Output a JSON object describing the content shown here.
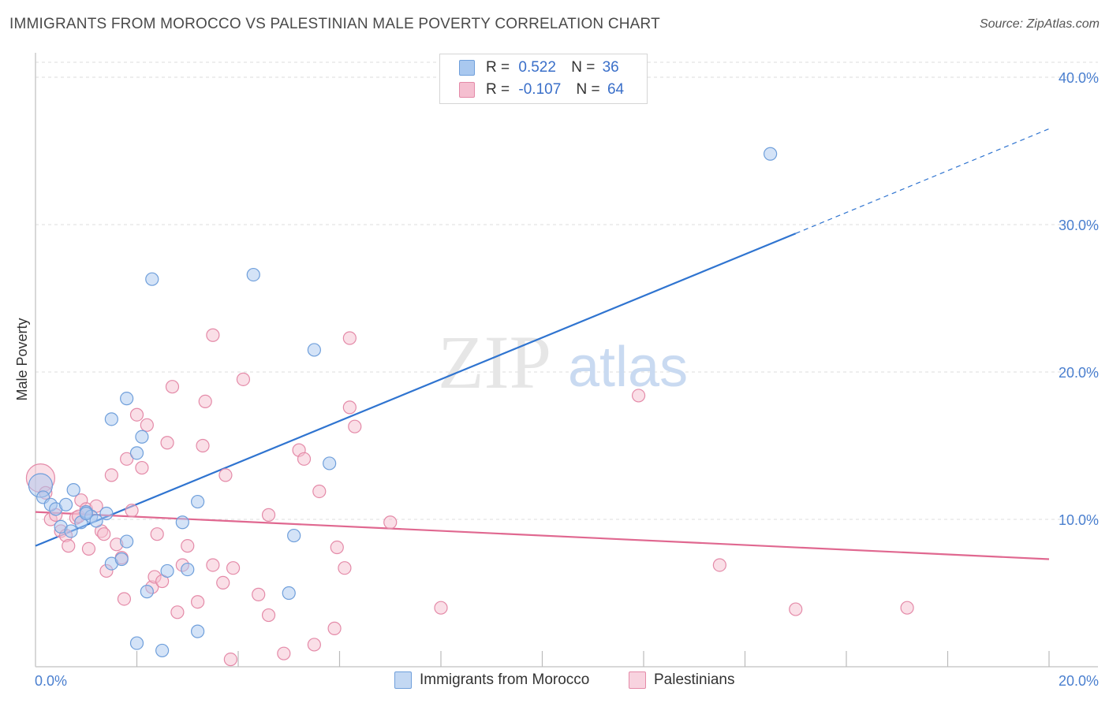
{
  "header": {
    "title": "IMMIGRANTS FROM MOROCCO VS PALESTINIAN MALE POVERTY CORRELATION CHART",
    "source": "Source: ZipAtlas.com"
  },
  "legend": {
    "rows": [
      {
        "r_label": "R =",
        "r_value": "0.522",
        "n_label": "N =",
        "n_value": "36"
      },
      {
        "r_label": "R =",
        "r_value": "-0.107",
        "n_label": "N =",
        "n_value": "64"
      }
    ]
  },
  "watermark": {
    "zip": "ZIP",
    "atlas": "atlas"
  },
  "colors": {
    "blue_fill": "#a9c8ef",
    "blue_stroke": "#6f9fdb",
    "blue_line": "#2f74d0",
    "pink_fill": "#f5bfd0",
    "pink_stroke": "#e48aa8",
    "pink_line": "#e06890",
    "axis_text": "#4a7fcf",
    "grid": "#dcdcdc"
  },
  "chart_data": {
    "type": "scatter",
    "title": "IMMIGRANTS FROM MOROCCO VS PALESTINIAN MALE POVERTY CORRELATION CHART",
    "xlabel": "",
    "ylabel": "Male Poverty",
    "xlim": [
      0,
      20
    ],
    "ylim": [
      0,
      40
    ],
    "x_tick_labels": [
      "0.0%",
      "20.0%"
    ],
    "y_tick_labels": [
      "10.0%",
      "20.0%",
      "30.0%",
      "40.0%"
    ],
    "y_ticks": [
      10,
      20,
      30,
      40
    ],
    "x_minor_ticks": [
      2,
      4,
      6,
      8,
      10,
      12,
      14,
      16,
      18,
      20
    ],
    "grid": "horizontal dashed",
    "legend_position": "top-center",
    "series": [
      {
        "name": "Immigrants from Morocco",
        "color": "blue",
        "r": 0.522,
        "n": 36,
        "trend": {
          "x0": 0,
          "y0": 8.2,
          "x1": 15.0,
          "y1": 29.4,
          "dash_to_x": 20,
          "dash_to_y": 36.5
        },
        "points": [
          [
            0.1,
            12.3,
            "L"
          ],
          [
            0.15,
            11.5
          ],
          [
            0.3,
            11.0
          ],
          [
            0.4,
            10.7
          ],
          [
            0.6,
            11.0
          ],
          [
            0.75,
            12.0
          ],
          [
            0.5,
            9.5
          ],
          [
            0.7,
            9.2
          ],
          [
            0.9,
            9.8
          ],
          [
            1.0,
            10.5
          ],
          [
            1.1,
            10.2
          ],
          [
            1.2,
            9.9
          ],
          [
            1.4,
            10.4
          ],
          [
            1.5,
            7.0
          ],
          [
            1.7,
            7.3
          ],
          [
            1.8,
            8.5
          ],
          [
            1.5,
            16.8
          ],
          [
            1.8,
            18.2
          ],
          [
            2.1,
            15.6
          ],
          [
            2.0,
            14.5
          ],
          [
            2.3,
            26.3
          ],
          [
            2.6,
            6.5
          ],
          [
            3.0,
            6.6
          ],
          [
            3.2,
            11.2
          ],
          [
            2.9,
            9.8
          ],
          [
            3.2,
            2.4
          ],
          [
            4.3,
            26.6
          ],
          [
            5.0,
            5.0
          ],
          [
            5.1,
            8.9
          ],
          [
            5.5,
            21.5
          ],
          [
            5.8,
            13.8
          ],
          [
            2.2,
            5.1
          ],
          [
            2.0,
            1.6
          ],
          [
            2.5,
            1.1
          ],
          [
            14.5,
            34.8
          ],
          [
            1.0,
            10.4
          ]
        ]
      },
      {
        "name": "Palestinians",
        "color": "pink",
        "r": -0.107,
        "n": 64,
        "trend": {
          "x0": 0,
          "y0": 10.5,
          "x1": 20,
          "y1": 7.3
        },
        "points": [
          [
            0.1,
            12.8,
            "XL"
          ],
          [
            0.2,
            11.8
          ],
          [
            0.3,
            10.0
          ],
          [
            0.4,
            10.3
          ],
          [
            0.5,
            9.2
          ],
          [
            0.6,
            8.9
          ],
          [
            0.65,
            8.2
          ],
          [
            0.8,
            10.1
          ],
          [
            0.85,
            10.2
          ],
          [
            0.9,
            11.3
          ],
          [
            1.0,
            10.7
          ],
          [
            1.05,
            8.0
          ],
          [
            1.2,
            10.9
          ],
          [
            1.3,
            9.2
          ],
          [
            1.35,
            9.0
          ],
          [
            1.4,
            6.5
          ],
          [
            1.5,
            13.0
          ],
          [
            1.6,
            8.3
          ],
          [
            1.7,
            7.4
          ],
          [
            1.75,
            4.6
          ],
          [
            1.8,
            14.1
          ],
          [
            1.9,
            10.6
          ],
          [
            2.0,
            17.1
          ],
          [
            2.1,
            13.5
          ],
          [
            2.2,
            16.4
          ],
          [
            2.3,
            5.4
          ],
          [
            2.35,
            6.1
          ],
          [
            2.4,
            9.0
          ],
          [
            2.5,
            5.8
          ],
          [
            2.6,
            15.2
          ],
          [
            2.7,
            19.0
          ],
          [
            2.8,
            3.7
          ],
          [
            2.9,
            6.9
          ],
          [
            3.0,
            8.2
          ],
          [
            3.2,
            4.4
          ],
          [
            3.3,
            15.0
          ],
          [
            3.35,
            18.0
          ],
          [
            3.5,
            6.9
          ],
          [
            3.5,
            22.5
          ],
          [
            3.7,
            5.7
          ],
          [
            3.75,
            13.0
          ],
          [
            3.85,
            0.5
          ],
          [
            3.9,
            6.7
          ],
          [
            4.1,
            19.5
          ],
          [
            4.4,
            4.9
          ],
          [
            4.6,
            3.5
          ],
          [
            4.9,
            0.9
          ],
          [
            5.2,
            14.7
          ],
          [
            5.3,
            14.1
          ],
          [
            5.5,
            1.5
          ],
          [
            5.6,
            11.9
          ],
          [
            5.9,
            2.6
          ],
          [
            5.95,
            8.1
          ],
          [
            6.1,
            6.7
          ],
          [
            6.2,
            22.3
          ],
          [
            6.2,
            17.6
          ],
          [
            6.3,
            16.3
          ],
          [
            7.0,
            9.8
          ],
          [
            8.0,
            4.0
          ],
          [
            11.9,
            18.4
          ],
          [
            13.5,
            6.9
          ],
          [
            15.0,
            3.9
          ],
          [
            17.2,
            4.0
          ],
          [
            4.6,
            10.3
          ]
        ]
      }
    ]
  }
}
